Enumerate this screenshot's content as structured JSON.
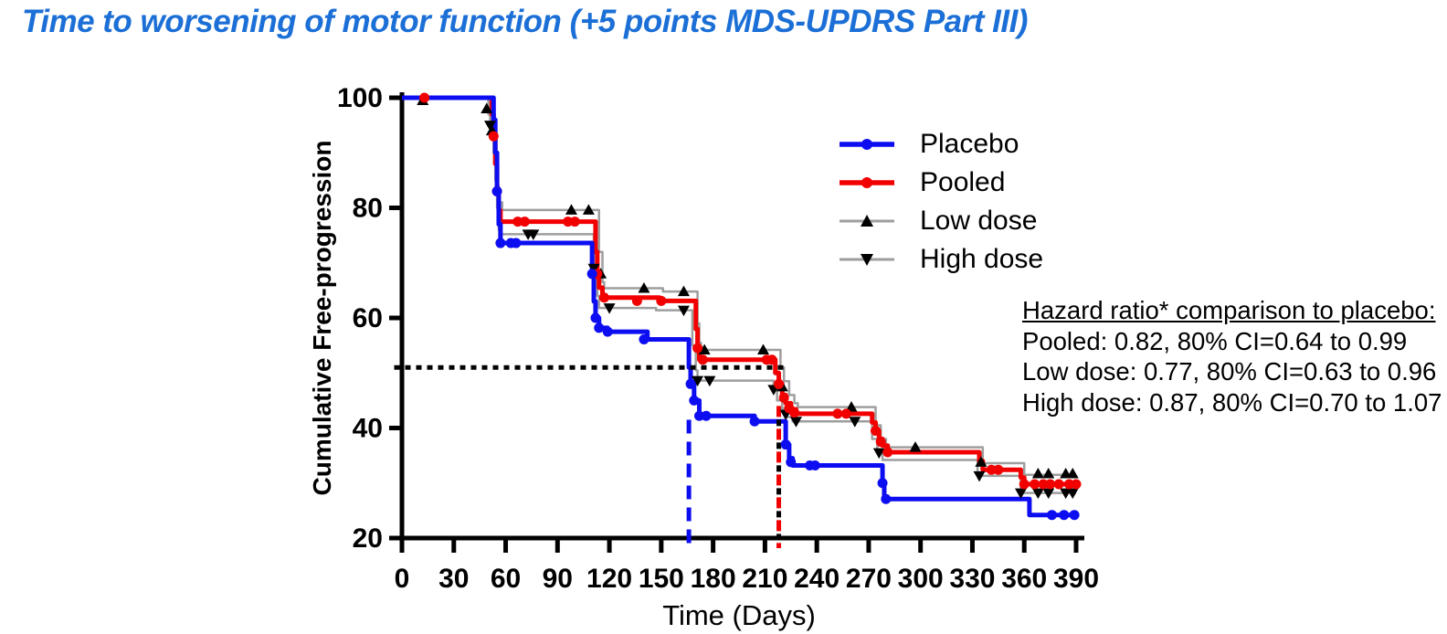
{
  "title": "Time to worsening of motor function (+5 points MDS-UPDRS Part III)",
  "colors": {
    "title_blue": "#1b6fd6",
    "placebo_blue": "#0d0df2",
    "pooled_red": "#f20000",
    "dose_gray": "#9e9e9e",
    "marker_black": "#000000"
  },
  "chart_data": {
    "type": "line",
    "subtype": "kaplan-meier-step",
    "title": "",
    "xlabel": "Time (Days)",
    "ylabel": "Cumulative Free-progression",
    "xlim": [
      0,
      390
    ],
    "ylim": [
      20,
      100
    ],
    "xticks": [
      0,
      30,
      60,
      90,
      120,
      150,
      180,
      210,
      240,
      270,
      300,
      330,
      360,
      390
    ],
    "yticks": [
      100,
      80,
      60,
      40,
      20
    ],
    "grid": false,
    "legend_position": "upper-right-inside",
    "legend_entries": [
      "Placebo",
      "Pooled",
      "Low dose",
      "High dose"
    ],
    "series": [
      {
        "name": "Low dose",
        "color": "#9e9e9e",
        "line_width": 2.5,
        "marker": "triangle-up",
        "marker_color": "#000000",
        "zorder": 1,
        "steps": [
          [
            0,
            100
          ],
          [
            48,
            100
          ],
          [
            50,
            97
          ],
          [
            52,
            94
          ],
          [
            54,
            89
          ],
          [
            55,
            84
          ],
          [
            56,
            81
          ],
          [
            58,
            79.6
          ],
          [
            112,
            79.6
          ],
          [
            114,
            72
          ],
          [
            116,
            66.5
          ],
          [
            117,
            65.4
          ],
          [
            150,
            65.4
          ],
          [
            151,
            64.8
          ],
          [
            170,
            64.8
          ],
          [
            171,
            59
          ],
          [
            172,
            55.5
          ],
          [
            173,
            54.2
          ],
          [
            217,
            54.2
          ],
          [
            219,
            51
          ],
          [
            221,
            48.5
          ],
          [
            224,
            46
          ],
          [
            227,
            44.5
          ],
          [
            229,
            43.8
          ],
          [
            271,
            43.8
          ],
          [
            274,
            40.5
          ],
          [
            277,
            38
          ],
          [
            280,
            36.5
          ],
          [
            333,
            36.5
          ],
          [
            336,
            33.6
          ],
          [
            357,
            33.6
          ],
          [
            360,
            31.5
          ],
          [
            390,
            31.5
          ]
        ],
        "markers": [
          [
            12,
            99.5
          ],
          [
            49,
            98
          ],
          [
            52,
            94
          ],
          [
            98,
            79.6
          ],
          [
            108,
            79.6
          ],
          [
            115,
            68
          ],
          [
            140,
            65.4
          ],
          [
            163,
            64.8
          ],
          [
            175,
            54.2
          ],
          [
            209,
            54.2
          ],
          [
            220,
            47.5
          ],
          [
            260,
            43.8
          ],
          [
            297,
            36.5
          ],
          [
            335,
            33.8
          ],
          [
            368,
            31.7
          ],
          [
            374,
            31.7
          ],
          [
            384,
            31.7
          ],
          [
            388,
            31.7
          ]
        ]
      },
      {
        "name": "High dose",
        "color": "#9e9e9e",
        "line_width": 2.5,
        "marker": "triangle-down",
        "marker_color": "#000000",
        "zorder": 2,
        "steps": [
          [
            0,
            100
          ],
          [
            48,
            100
          ],
          [
            51,
            95
          ],
          [
            53,
            90
          ],
          [
            54,
            85
          ],
          [
            55,
            80
          ],
          [
            56,
            76
          ],
          [
            57,
            75.2
          ],
          [
            109,
            75.2
          ],
          [
            111,
            69
          ],
          [
            113,
            64
          ],
          [
            114,
            61.8
          ],
          [
            146,
            61.8
          ],
          [
            147,
            61.4
          ],
          [
            166,
            61.4
          ],
          [
            168,
            55
          ],
          [
            170,
            50.5
          ],
          [
            171,
            48.6
          ],
          [
            213,
            48.6
          ],
          [
            215,
            47
          ],
          [
            217,
            45
          ],
          [
            220,
            43.5
          ],
          [
            223,
            42
          ],
          [
            226,
            41.2
          ],
          [
            269,
            41.2
          ],
          [
            272,
            38
          ],
          [
            275,
            35.5
          ],
          [
            278,
            34.2
          ],
          [
            330,
            34.2
          ],
          [
            333,
            31.3
          ],
          [
            355,
            31.3
          ],
          [
            358,
            28.2
          ],
          [
            390,
            28.2
          ]
        ],
        "markers": [
          [
            51,
            95
          ],
          [
            73,
            75.2
          ],
          [
            76,
            75.2
          ],
          [
            111,
            69
          ],
          [
            120,
            61.8
          ],
          [
            163,
            61.4
          ],
          [
            171,
            48.6
          ],
          [
            178,
            48.6
          ],
          [
            215,
            47
          ],
          [
            222,
            42.5
          ],
          [
            228,
            41.2
          ],
          [
            262,
            41.2
          ],
          [
            276,
            35.5
          ],
          [
            334,
            31.3
          ],
          [
            358,
            28.2
          ],
          [
            368,
            28.2
          ],
          [
            374,
            28.2
          ],
          [
            384,
            28.2
          ],
          [
            388,
            28.2
          ]
        ]
      },
      {
        "name": "Pooled",
        "color": "#f20000",
        "line_width": 5,
        "marker": "circle",
        "marker_color": "#f20000",
        "zorder": 3,
        "steps": [
          [
            0,
            100
          ],
          [
            50,
            100
          ],
          [
            52,
            97
          ],
          [
            53,
            93
          ],
          [
            54,
            88
          ],
          [
            55,
            83
          ],
          [
            56,
            79.5
          ],
          [
            57,
            77.5
          ],
          [
            110,
            77.5
          ],
          [
            112,
            72
          ],
          [
            113,
            68
          ],
          [
            114,
            65.5
          ],
          [
            116,
            63.7
          ],
          [
            148,
            63.7
          ],
          [
            149,
            63.1
          ],
          [
            169,
            63.1
          ],
          [
            170,
            58
          ],
          [
            171,
            54.5
          ],
          [
            172,
            52.4
          ],
          [
            214,
            52.4
          ],
          [
            216,
            50
          ],
          [
            218,
            48
          ],
          [
            220,
            46
          ],
          [
            222,
            44.5
          ],
          [
            225,
            43.4
          ],
          [
            228,
            42.6
          ],
          [
            270,
            42.6
          ],
          [
            272,
            41
          ],
          [
            274,
            39.5
          ],
          [
            276,
            38
          ],
          [
            278,
            36.8
          ],
          [
            281,
            35.6
          ],
          [
            332,
            35.6
          ],
          [
            334,
            34
          ],
          [
            336,
            32.4
          ],
          [
            356,
            32.4
          ],
          [
            358,
            31
          ],
          [
            360,
            29.8
          ],
          [
            390,
            29.8
          ]
        ],
        "markers": [
          [
            13,
            100
          ],
          [
            53,
            93
          ],
          [
            55,
            83
          ],
          [
            67,
            77.5
          ],
          [
            71,
            77.5
          ],
          [
            96,
            77.5
          ],
          [
            100,
            77.5
          ],
          [
            113,
            68
          ],
          [
            117,
            63.7
          ],
          [
            136,
            63.1
          ],
          [
            150,
            63.1
          ],
          [
            171,
            54.5
          ],
          [
            174,
            52.4
          ],
          [
            211,
            52.4
          ],
          [
            214,
            52.4
          ],
          [
            218,
            48
          ],
          [
            221,
            45.5
          ],
          [
            224,
            43.6
          ],
          [
            227,
            42.8
          ],
          [
            252,
            42.6
          ],
          [
            257,
            42.6
          ],
          [
            274,
            39.5
          ],
          [
            277,
            37.5
          ],
          [
            281,
            35.6
          ],
          [
            341,
            32.4
          ],
          [
            345,
            32.4
          ],
          [
            360,
            29.8
          ],
          [
            366,
            29.8
          ],
          [
            371,
            29.8
          ],
          [
            375,
            29.8
          ],
          [
            380,
            29.8
          ],
          [
            386,
            29.8
          ],
          [
            390,
            29.8
          ]
        ]
      },
      {
        "name": "Placebo",
        "color": "#0d0df2",
        "line_width": 5,
        "marker": "circle",
        "marker_color": "#0d0df2",
        "zorder": 4,
        "steps": [
          [
            0,
            100
          ],
          [
            52,
            100
          ],
          [
            53,
            96
          ],
          [
            54,
            90
          ],
          [
            55,
            83
          ],
          [
            56,
            77
          ],
          [
            57,
            73.6
          ],
          [
            108,
            73.6
          ],
          [
            110,
            68
          ],
          [
            111,
            63
          ],
          [
            112,
            60
          ],
          [
            114,
            58.2
          ],
          [
            119,
            57.5
          ],
          [
            142,
            56.1
          ],
          [
            165,
            56.1
          ],
          [
            166,
            51
          ],
          [
            167,
            48
          ],
          [
            169,
            45
          ],
          [
            172,
            42.2
          ],
          [
            204,
            41.2
          ],
          [
            221,
            41.2
          ],
          [
            222,
            37
          ],
          [
            224,
            34.5
          ],
          [
            226,
            33.2
          ],
          [
            276,
            33.2
          ],
          [
            278,
            30
          ],
          [
            279,
            27.1
          ],
          [
            362,
            27.1
          ],
          [
            363,
            24.2
          ],
          [
            390,
            24.2
          ]
        ],
        "markers": [
          [
            55,
            83
          ],
          [
            57,
            73.6
          ],
          [
            63,
            73.6
          ],
          [
            66,
            73.6
          ],
          [
            110,
            68
          ],
          [
            112,
            60
          ],
          [
            114,
            58.2
          ],
          [
            119,
            57.5
          ],
          [
            140,
            56.1
          ],
          [
            167,
            48
          ],
          [
            169,
            45
          ],
          [
            172,
            42.2
          ],
          [
            176,
            42.2
          ],
          [
            204,
            41.2
          ],
          [
            222,
            37
          ],
          [
            225,
            33.8
          ],
          [
            236,
            33.2
          ],
          [
            239,
            33.2
          ],
          [
            278,
            30
          ],
          [
            280,
            27.1
          ],
          [
            376,
            24.2
          ],
          [
            383,
            24.2
          ],
          [
            389,
            24.2
          ]
        ]
      }
    ],
    "reference_lines": [
      {
        "name": "median-horizontal-dotted",
        "orientation": "horizontal",
        "value": 51,
        "from": 0,
        "to": 224,
        "style": "dotted",
        "color": "#000000"
      },
      {
        "name": "placebo-median-vertical",
        "orientation": "vertical",
        "value": 166,
        "from": 41.5,
        "to": 18,
        "style": "dashed",
        "color": "#0d0df2"
      },
      {
        "name": "pooled-median-vertical",
        "orientation": "vertical",
        "value": 218,
        "from": 44,
        "to": 18,
        "style": "dash-dot",
        "color": "#f20000",
        "color2": "#000000"
      }
    ],
    "annotations": {
      "hazard": {
        "heading": "Hazard ratio* comparison to placebo:",
        "lines": [
          "Pooled: 0.82, 80% CI=0.64 to 0.99",
          "Low dose: 0.77, 80% CI=0.63 to 0.96",
          "High dose: 0.87, 80% CI=0.70 to 1.07"
        ]
      }
    }
  }
}
